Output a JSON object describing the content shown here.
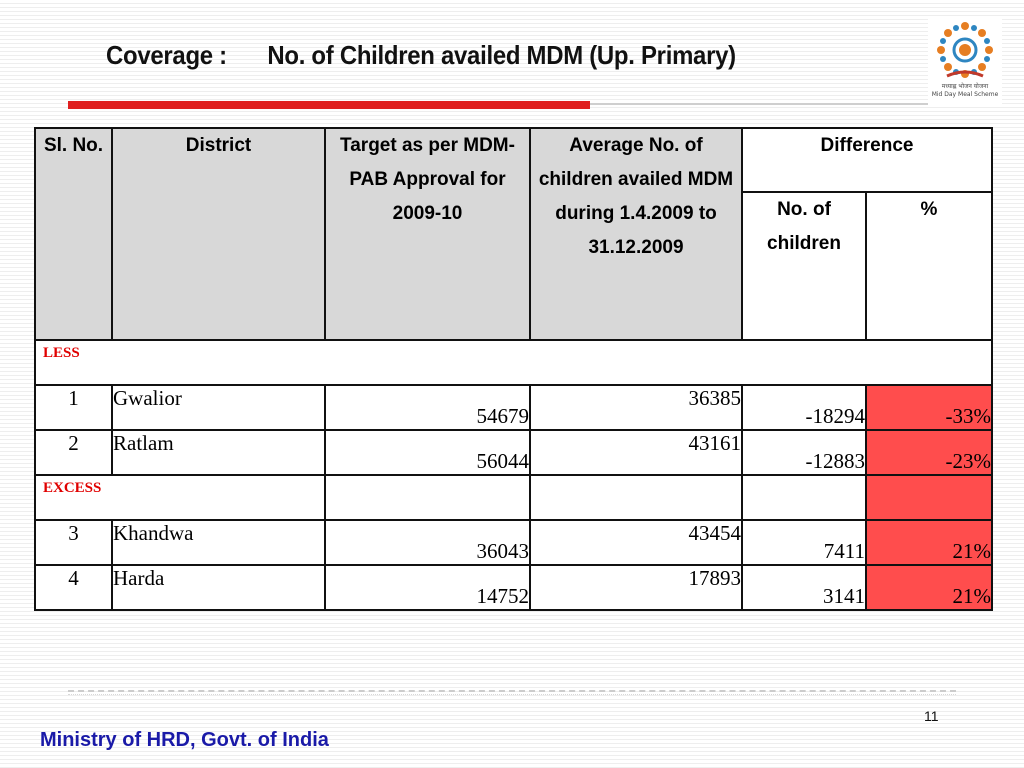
{
  "slide": {
    "title_left": "Coverage :",
    "title_right": "No. of Children availed MDM (Up. Primary)",
    "page_number": "11",
    "footer": "Ministry of HRD, Govt. of India"
  },
  "logo": {
    "line1": "मध्याह्न भोजन योजना",
    "line2": "Mid Day Meal Scheme"
  },
  "table": {
    "headers": {
      "sl": "Sl. No.",
      "district": "District",
      "target": "Target as per MDM-PAB Approval for 2009-10",
      "average": "Average No. of children availed MDM during 1.4.2009 to 31.12.2009",
      "difference": "Difference",
      "diff_children": "No. of children",
      "diff_pct": "%"
    },
    "sections": [
      {
        "label": "LESS",
        "rows": [
          {
            "sl": "1",
            "district": "Gwalior",
            "target": "54679",
            "average": "36385",
            "diff": "-18294",
            "pct": "-33%"
          },
          {
            "sl": "2",
            "district": "Ratlam",
            "target": "56044",
            "average": "43161",
            "diff": "-12883",
            "pct": "-23%"
          }
        ]
      },
      {
        "label": "EXCESS",
        "rows": [
          {
            "sl": "3",
            "district": "Khandwa",
            "target": "36043",
            "average": "43454",
            "diff": "7411",
            "pct": "21%"
          },
          {
            "sl": "4",
            "district": "Harda",
            "target": "14752",
            "average": "17893",
            "diff": "3141",
            "pct": "21%"
          }
        ]
      }
    ]
  },
  "colors": {
    "highlight": "#ff4d4d",
    "title_rule": "#e02020",
    "footer_text": "#1a1aa8",
    "section_label": "#e00000",
    "header_fill": "#d8d8d8"
  }
}
